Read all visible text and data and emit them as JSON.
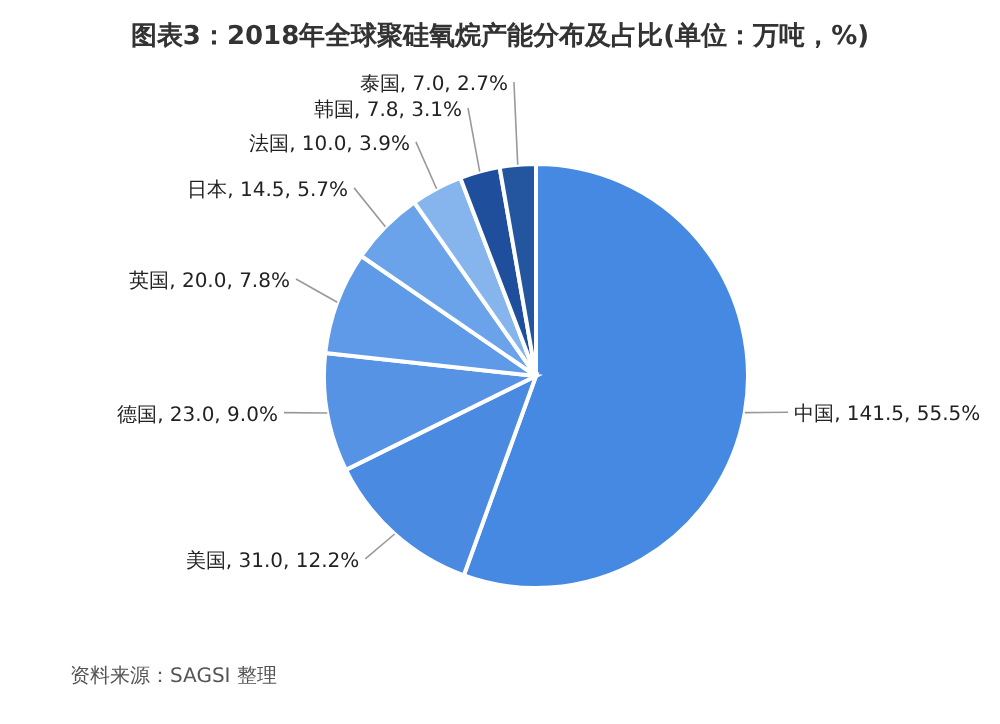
{
  "chart_data": {
    "type": "pie",
    "title": "图表3：2018年全球聚硅氧烷产能分布及占比(单位：万吨，%)",
    "categories": [
      "中国",
      "美国",
      "德国",
      "英国",
      "日本",
      "法国",
      "韩国",
      "泰国"
    ],
    "values": [
      141.5,
      31.0,
      23.0,
      20.0,
      14.5,
      10.0,
      7.8,
      7.0
    ],
    "value_labels": [
      "141.5, 55.5%",
      "31.0, 12.2%",
      "23.0, 9.0%",
      "20.0, 7.8%",
      "14.5, 5.7%",
      "10.0, 3.9%",
      "7.8, 3.1%",
      "7.0, 2.7%"
    ],
    "colors": [
      "#4689e2",
      "#4a8ae0",
      "#5693e4",
      "#5e9ae8",
      "#6aa3ea",
      "#86b5ee",
      "#1f4f9c",
      "#24569f"
    ],
    "annotations": [
      "资料来源：SAGSI 整理"
    ]
  }
}
